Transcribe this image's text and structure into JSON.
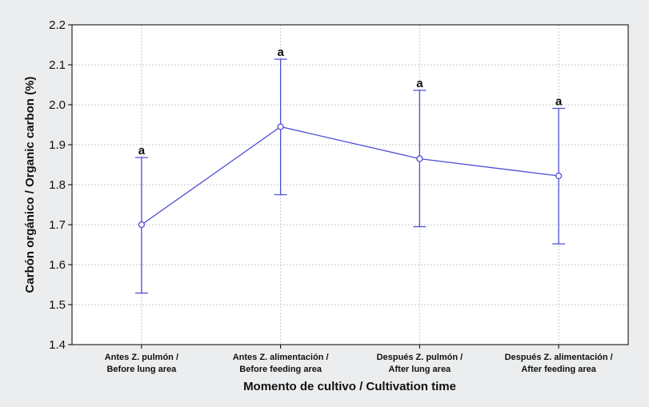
{
  "chart_data": {
    "type": "line",
    "title": "",
    "xlabel": "Momento de cultivo / Cultivation time",
    "ylabel": "Carbón orgánico / Organic carbon (%)",
    "ylim": [
      1.4,
      2.2
    ],
    "yticks": [
      "1.4",
      "1.5",
      "1.6",
      "1.7",
      "1.8",
      "1.9",
      "2.0",
      "2.1",
      "2.2"
    ],
    "grid": true,
    "categories": [
      [
        "Antes Z. pulmón /",
        "Before lung area"
      ],
      [
        "Antes Z. alimentación /",
        "Before feeding area"
      ],
      [
        "Después Z. pulmón /",
        "After lung area"
      ],
      [
        "Después Z. alimentación /",
        "After feeding area"
      ]
    ],
    "series": [
      {
        "values": [
          1.7,
          1.945,
          1.865,
          1.822
        ],
        "error_upper": [
          1.868,
          2.114,
          2.036,
          1.991
        ],
        "error_lower": [
          1.529,
          1.775,
          1.695,
          1.652
        ],
        "annotations": [
          "a",
          "a",
          "a",
          "a"
        ],
        "color": "#4d4dd6"
      }
    ],
    "colors": {
      "background": "#ebedee",
      "plot_background": "#ffffff",
      "grid": "#c8c8c8",
      "axis": "#000000"
    }
  }
}
